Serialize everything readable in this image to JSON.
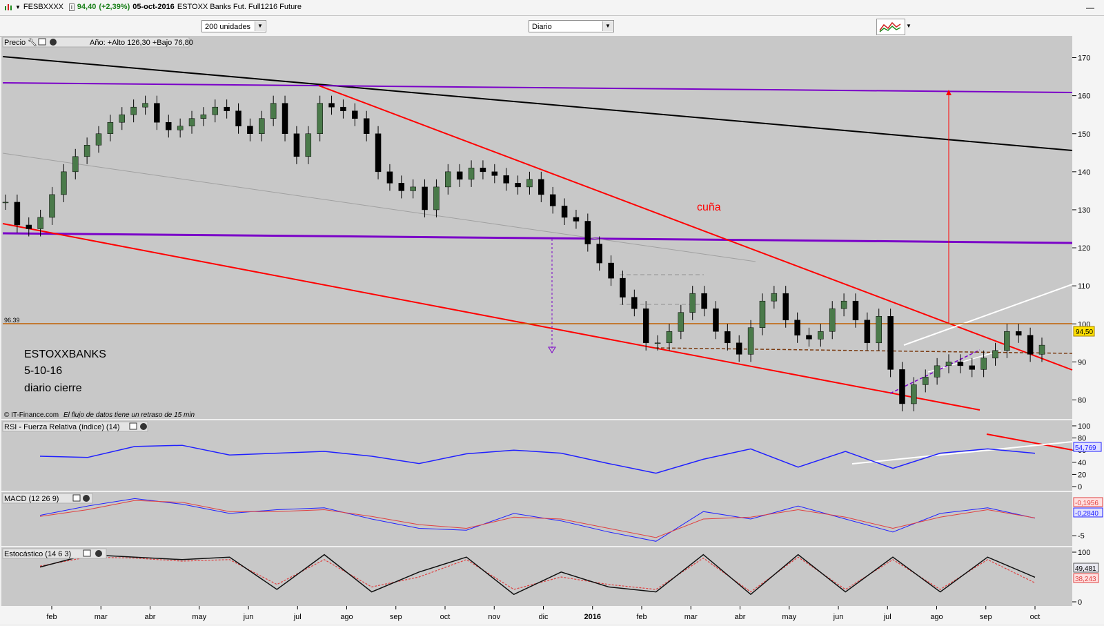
{
  "titlebar": {
    "symbol": "FESBXXXX",
    "last": "94,40",
    "change": "(+2,39%)",
    "date": "05-oct-2016",
    "description": "ESTOXX Banks Fut. Full1216 Future"
  },
  "toolbar": {
    "units_select": "200 unidades",
    "period_select": "Diario"
  },
  "panels": {
    "price": {
      "label": "Precio",
      "range_text": "Año: +Alto 126,30 +Bajo 76,80",
      "last_value": "94,50",
      "level_label": "96.39",
      "annotation_wedge": "cuña",
      "note_lines": [
        "ESTOXXBANKS",
        "5-10-16",
        "diario  cierre"
      ],
      "copyright": "© IT-Finance.com",
      "delay_note": "El flujo de datos tiene un retraso de 15 min"
    },
    "rsi": {
      "label": "RSI - Fuerza Relativa (índice) (14)",
      "last_value": "54,769"
    },
    "macd": {
      "label": "MACD (12 26 9)",
      "value_red": "-0,1956",
      "value_blue": "-0,2840"
    },
    "stoch": {
      "label": "Estocástico (14 6 3)",
      "value_blue": "49,481",
      "value_red": "38,243"
    }
  },
  "colors": {
    "panel_bg": "#c8c8c8",
    "trend_red": "#ff0000",
    "purple": "#7a00c8",
    "rsi_blue": "#2020ff",
    "level_orange": "#c06000",
    "candle_up": "#4a7a4a",
    "candle_down": "#000000"
  },
  "chart_data": [
    {
      "type": "candlestick",
      "panel": "price",
      "x": [
        "2015-01-19",
        "2015-01-26",
        "2015-02-02",
        "2015-02-09",
        "2015-02-16",
        "2015-02-23",
        "2015-03-02",
        "2015-03-09",
        "2015-03-16",
        "2015-03-23",
        "2015-03-30",
        "2015-04-06",
        "2015-04-13",
        "2015-04-20",
        "2015-04-27",
        "2015-05-04",
        "2015-05-11",
        "2015-05-18",
        "2015-05-25",
        "2015-06-01",
        "2015-06-08",
        "2015-06-15",
        "2015-06-22",
        "2015-06-29",
        "2015-07-06",
        "2015-07-13",
        "2015-07-20",
        "2015-07-27",
        "2015-08-03",
        "2015-08-10",
        "2015-08-17",
        "2015-08-24",
        "2015-08-31",
        "2015-09-07",
        "2015-09-14",
        "2015-09-21",
        "2015-09-28",
        "2015-10-05",
        "2015-10-12",
        "2015-10-19",
        "2015-10-26",
        "2015-11-02",
        "2015-11-09",
        "2015-11-16",
        "2015-11-23",
        "2015-11-30",
        "2015-12-07",
        "2015-12-14",
        "2015-12-21",
        "2015-12-28",
        "2016-01-04",
        "2016-01-11",
        "2016-01-18",
        "2016-01-25",
        "2016-02-01",
        "2016-02-08",
        "2016-02-15",
        "2016-02-22",
        "2016-02-29",
        "2016-03-07",
        "2016-03-14",
        "2016-03-21",
        "2016-03-28",
        "2016-04-04",
        "2016-04-11",
        "2016-04-18",
        "2016-04-25",
        "2016-05-02",
        "2016-05-09",
        "2016-05-16",
        "2016-05-23",
        "2016-05-30",
        "2016-06-06",
        "2016-06-13",
        "2016-06-20",
        "2016-06-27",
        "2016-07-04",
        "2016-07-11",
        "2016-07-18",
        "2016-07-25",
        "2016-08-01",
        "2016-08-08",
        "2016-08-15",
        "2016-08-22",
        "2016-08-29",
        "2016-09-05",
        "2016-09-12",
        "2016-09-19",
        "2016-09-26",
        "2016-10-03"
      ],
      "close": [
        132,
        126,
        125,
        128,
        134,
        140,
        144,
        147,
        150,
        153,
        155,
        157,
        158,
        153,
        151,
        152,
        154,
        155,
        157,
        156,
        152,
        150,
        154,
        158,
        150,
        144,
        150,
        158,
        157,
        156,
        154,
        150,
        140,
        137,
        135,
        136,
        130,
        136,
        140,
        138,
        141,
        140,
        139,
        137,
        136,
        138,
        134,
        131,
        128,
        127,
        121,
        116,
        112,
        107,
        104,
        95,
        95,
        98,
        103,
        108,
        104,
        98,
        95,
        92,
        99,
        106,
        108,
        101,
        97,
        96,
        98,
        104,
        106,
        101,
        95,
        102,
        88,
        79,
        84,
        86,
        89,
        90,
        89,
        88,
        91,
        93,
        98,
        97,
        92,
        94.4
      ],
      "ylim": [
        75,
        175
      ],
      "yticks": [
        80,
        90,
        100,
        110,
        120,
        130,
        140,
        150,
        160,
        170
      ],
      "xtick_labels": [
        "feb",
        "mar",
        "abr",
        "may",
        "jun",
        "jul",
        "ago",
        "sep",
        "oct",
        "nov",
        "dic",
        "2016",
        "feb",
        "mar",
        "abr",
        "may",
        "jun",
        "jul",
        "ago",
        "sep",
        "oct"
      ],
      "horizontal_levels": [
        96.39,
        88
      ]
    },
    {
      "type": "line",
      "panel": "rsi",
      "x": [
        "2015-01",
        "2015-02",
        "2015-03",
        "2015-04",
        "2015-05",
        "2015-06",
        "2015-07",
        "2015-08",
        "2015-09",
        "2015-10",
        "2015-11",
        "2015-12",
        "2016-01",
        "2016-02",
        "2016-03",
        "2016-04",
        "2016-05",
        "2016-06",
        "2016-07",
        "2016-08",
        "2016-09",
        "2016-10"
      ],
      "series": [
        {
          "values": [
            50,
            48,
            66,
            68,
            52,
            55,
            58,
            50,
            38,
            54,
            60,
            55,
            38,
            22,
            45,
            62,
            32,
            58,
            30,
            55,
            62,
            54.769
          ]
        }
      ],
      "ylim": [
        0,
        100
      ],
      "yticks": [
        0,
        20,
        40,
        60,
        80,
        100
      ]
    },
    {
      "type": "line",
      "panel": "macd",
      "x": [
        "2015-01",
        "2015-02",
        "2015-03",
        "2015-04",
        "2015-05",
        "2015-06",
        "2015-07",
        "2015-08",
        "2015-09",
        "2015-10",
        "2015-11",
        "2015-12",
        "2016-01",
        "2016-02",
        "2016-03",
        "2016-04",
        "2016-05",
        "2016-06",
        "2016-07",
        "2016-08",
        "2016-09",
        "2016-10"
      ],
      "series": [
        {
          "values": [
            0.5,
            3,
            5,
            3.5,
            1,
            2,
            2.5,
            -0.5,
            -3,
            -3.5,
            1,
            -1,
            -4,
            -6.5,
            1.5,
            -0.5,
            3,
            -0.5,
            -4,
            1,
            2.5,
            -0.284
          ]
        },
        {
          "values": [
            0.2,
            2,
            4.5,
            4,
            1.5,
            1.5,
            2,
            0.2,
            -2,
            -3,
            0,
            -0.5,
            -3,
            -5.5,
            -0.5,
            0,
            2,
            0,
            -3,
            0,
            2,
            -0.1956
          ]
        }
      ],
      "ylim": [
        -7,
        6
      ],
      "yticks": [
        -5
      ]
    },
    {
      "type": "line",
      "panel": "stoch",
      "x": [
        "2015-01",
        "2015-02",
        "2015-03",
        "2015-04",
        "2015-05",
        "2015-06",
        "2015-07",
        "2015-08",
        "2015-09",
        "2015-10",
        "2015-11",
        "2015-12",
        "2016-01",
        "2016-02",
        "2016-03",
        "2016-04",
        "2016-05",
        "2016-06",
        "2016-07",
        "2016-08",
        "2016-09",
        "2016-10"
      ],
      "series": [
        {
          "values": [
            70,
            95,
            90,
            85,
            90,
            25,
            95,
            20,
            60,
            90,
            15,
            60,
            30,
            20,
            95,
            15,
            95,
            20,
            90,
            20,
            90,
            49.481
          ]
        },
        {
          "values": [
            72,
            90,
            88,
            82,
            85,
            35,
            85,
            30,
            50,
            85,
            25,
            50,
            35,
            25,
            88,
            20,
            90,
            25,
            85,
            25,
            85,
            38.243
          ]
        }
      ],
      "ylim": [
        0,
        100
      ],
      "yticks": [
        0,
        100
      ]
    }
  ]
}
